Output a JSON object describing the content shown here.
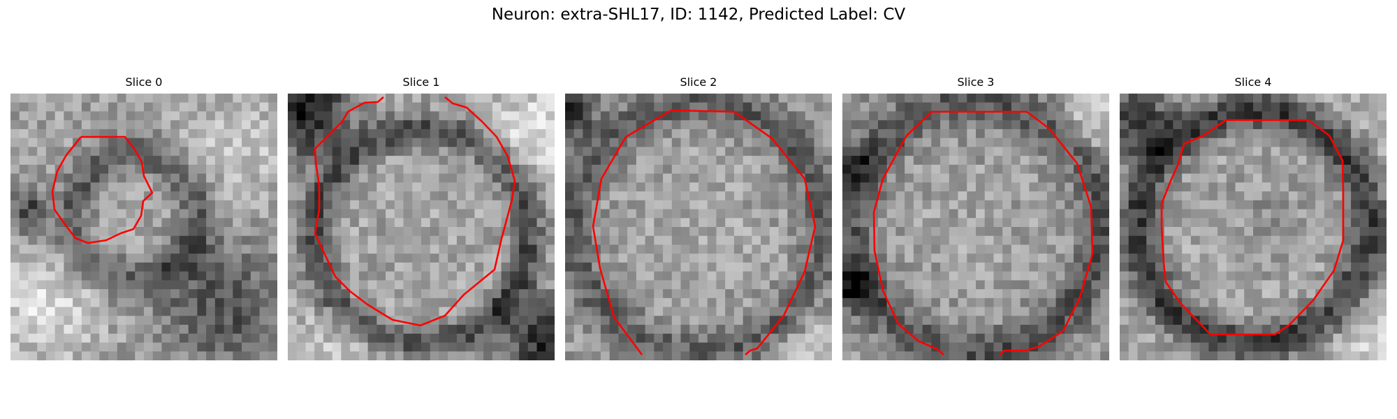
{
  "figure": {
    "title": "Neuron: extra-SHL17, ID: 1142, Predicted Label: CV"
  },
  "panels": [
    {
      "title": "Slice 0",
      "scene": 0
    },
    {
      "title": "Slice 1",
      "scene": 1
    },
    {
      "title": "Slice 2",
      "scene": 2
    },
    {
      "title": "Slice 3",
      "scene": 3
    },
    {
      "title": "Slice 4",
      "scene": 4
    }
  ],
  "colors": {
    "contour": "#ff0000",
    "background": "#ffffff"
  }
}
